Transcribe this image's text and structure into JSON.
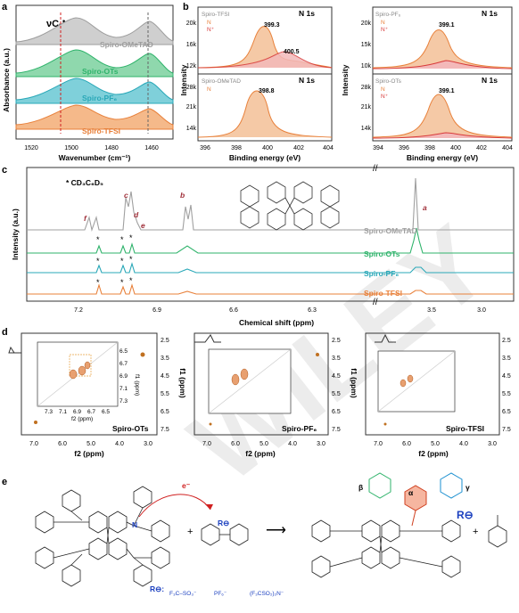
{
  "panel_a": {
    "letter": "a",
    "ylabel": "Absorbance (a.u.)",
    "xlabel": "Wavenumber (cm⁻¹)",
    "title": "νC-N",
    "xticks": [
      "1520",
      "1500",
      "1480",
      "1460"
    ],
    "traces": [
      {
        "label": "Spiro-OMeTAD",
        "color": "#9e9e9e"
      },
      {
        "label": "Spiro-OTs",
        "color": "#2fb36b"
      },
      {
        "label": "Spiro-PF₆",
        "color": "#2aa8b8"
      },
      {
        "label": "Spiro-TFSI",
        "color": "#e8803a"
      }
    ]
  },
  "panel_b": {
    "letter": "b",
    "ylabel": "Intensity",
    "xlabel": "Binding energy (eV)",
    "element": "N 1s",
    "xticks": [
      "396",
      "398",
      "400",
      "402",
      "404"
    ],
    "xticks_right": [
      "394",
      "396",
      "398",
      "400",
      "402",
      "404"
    ],
    "sub": [
      {
        "name": "Spiro-TFSI",
        "legend": [
          "N",
          "N⁺"
        ],
        "peaks": [
          "399.3",
          "400.5"
        ],
        "yticks": [
          "20k",
          "16k",
          "12k"
        ]
      },
      {
        "name": "Spiro-OMeTAD",
        "legend": [
          "N"
        ],
        "peaks": [
          "398.8"
        ],
        "yticks": [
          "28k",
          "21k",
          "14k"
        ]
      },
      {
        "name": "Spiro-PF₆",
        "legend": [
          "N",
          "N⁺"
        ],
        "peaks": [
          "399.1"
        ],
        "yticks": [
          "20k",
          "15k",
          "10k"
        ]
      },
      {
        "name": "Spiro-OTs",
        "legend": [
          "N",
          "N⁺"
        ],
        "peaks": [
          "399.1"
        ],
        "yticks": [
          "28k",
          "21k",
          "14k"
        ]
      }
    ]
  },
  "panel_c": {
    "letter": "c",
    "ylabel": "Intensity (a.u.)",
    "xlabel": "Chemical shift (ppm)",
    "solvent": "* CD₃C₆D₅",
    "xticks": [
      "7.2",
      "6.9",
      "6.6",
      "6.3",
      "3.5",
      "3.0"
    ],
    "peak_letters": [
      "a",
      "b",
      "c",
      "d",
      "e",
      "f"
    ],
    "traces": [
      {
        "label": "Spiro-OMeTAD",
        "color": "#a0a0a0"
      },
      {
        "label": "Spiro-OTs",
        "color": "#2fb36b"
      },
      {
        "label": "Spiro-PF₆",
        "color": "#2aa8b8"
      },
      {
        "label": "Spiro-TFSI",
        "color": "#e8803a"
      }
    ]
  },
  "panel_d": {
    "letter": "d",
    "xlabel": "f2 (ppm)",
    "ylabel": "f1 (ppm)",
    "xticks": [
      "7.0",
      "6.0",
      "5.0",
      "4.0",
      "3.0"
    ],
    "yticks": [
      "2.5",
      "3.5",
      "4.5",
      "5.5",
      "6.5",
      "7.5"
    ],
    "inset_xticks": [
      "7.3",
      "7.1",
      "6.9",
      "6.7",
      "6.5"
    ],
    "inset_yticks": [
      "6.5",
      "6.7",
      "6.9",
      "7.1",
      "7.3"
    ],
    "spectra": [
      "Spiro-OTs",
      "Spiro-PF₆",
      "Spiro-TFSI"
    ]
  },
  "panel_e": {
    "letter": "e",
    "electron": "e⁻",
    "anion": "R⊖",
    "anion_key": "R⊖:",
    "anions": [
      "F₃C–SO₃⁻",
      "PF₆⁻",
      "(F₃CSO₂)₂N⁻"
    ],
    "sites": [
      "α",
      "β",
      "γ"
    ],
    "plus": "+",
    "arrow": "⟶"
  },
  "watermark": "WILEY"
}
